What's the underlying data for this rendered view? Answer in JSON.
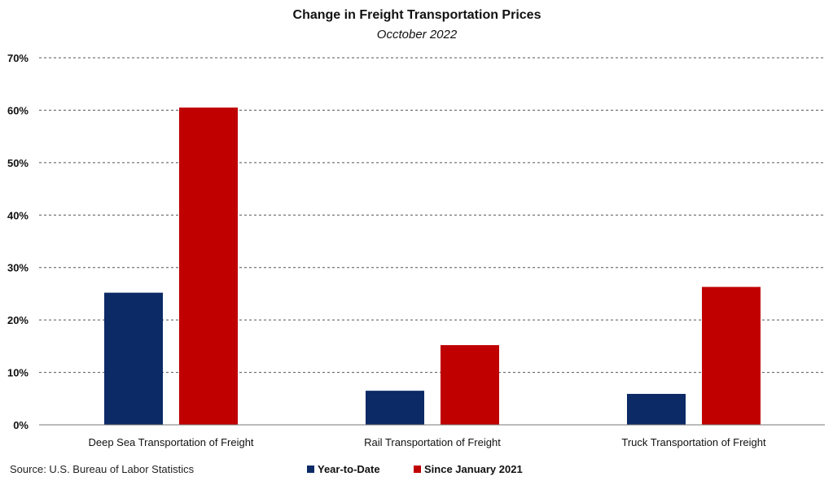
{
  "chart_data": {
    "type": "bar",
    "title": "Change in Freight Transportation Prices",
    "subtitle": "Occtober 2022",
    "categories": [
      "Deep Sea Transportation of Freight",
      "Rail Transportation of Freight",
      "Truck Transportation of Freight"
    ],
    "series": [
      {
        "name": "Year-to-Date",
        "color": "#0b2a66",
        "values": [
          25.2,
          6.5,
          5.9
        ]
      },
      {
        "name": "Since January 2021",
        "color": "#c00000",
        "values": [
          60.5,
          15.2,
          26.3
        ]
      }
    ],
    "ylim": [
      0,
      70
    ],
    "yticks": [
      0,
      10,
      20,
      30,
      40,
      50,
      60,
      70
    ],
    "ytick_labels": [
      "0%",
      "10%",
      "20%",
      "30%",
      "40%",
      "50%",
      "60%",
      "70%"
    ],
    "xlabel": "",
    "ylabel": "",
    "grid": "horizontal dashed",
    "legend_position": "bottom"
  },
  "source": "Source: U.S. Bureau of Labor Statistics"
}
